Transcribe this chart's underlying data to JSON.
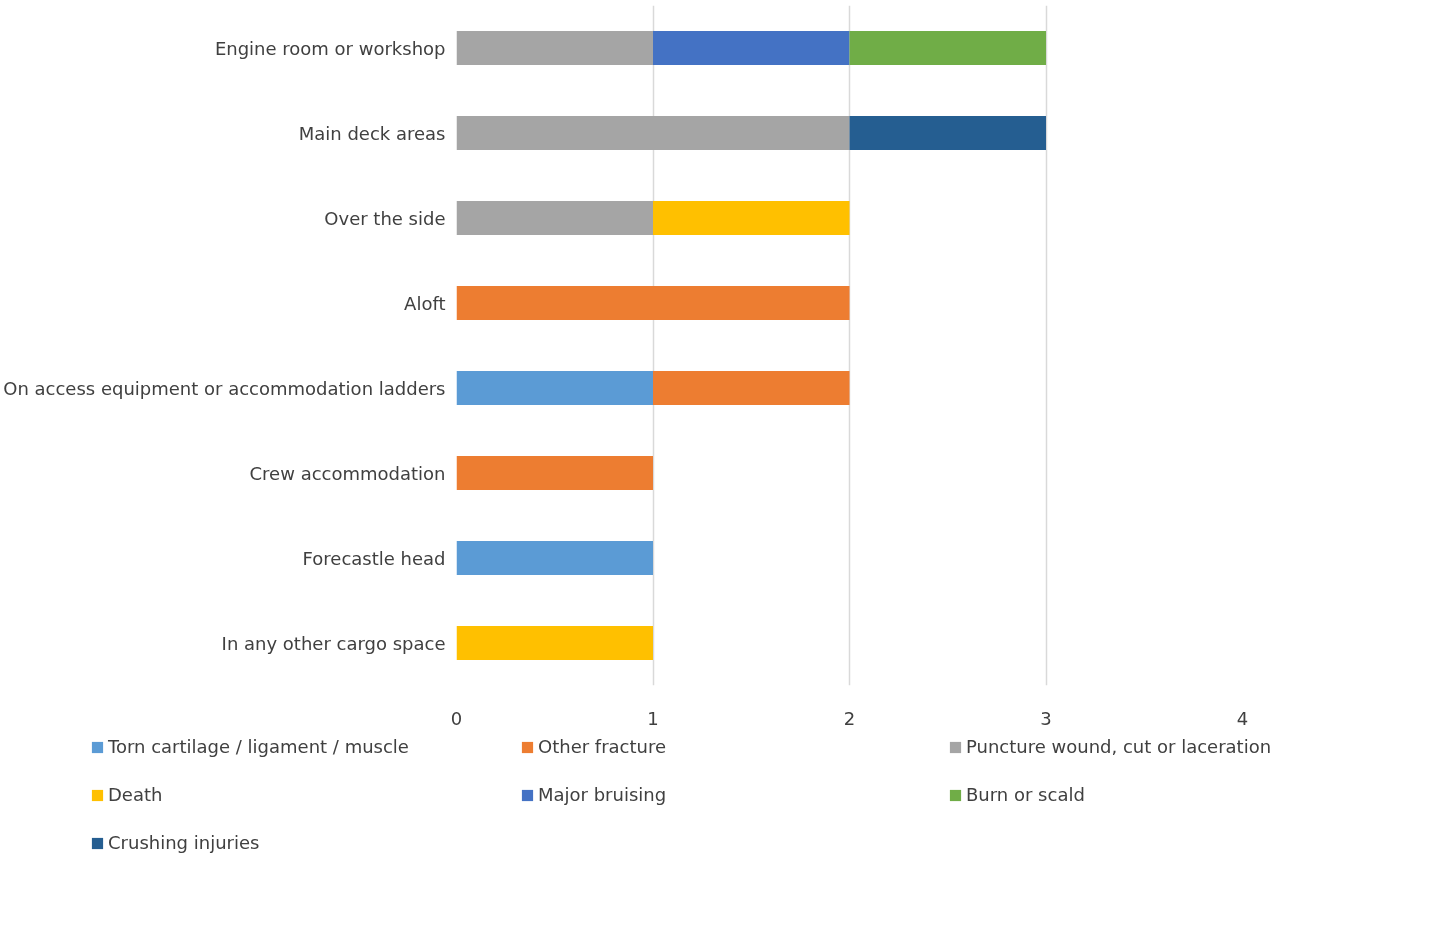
{
  "chart_data": {
    "type": "bar",
    "orientation": "horizontal",
    "stacked": true,
    "categories": [
      "Engine room or workshop",
      "Main deck areas",
      "Over the side",
      "Aloft",
      "On access equipment or accommodation ladders",
      "Crew accommodation",
      "Forecastle head",
      "In any other cargo space"
    ],
    "series": [
      {
        "name": "Torn cartilage / ligament / muscle",
        "color": "#5b9bd5",
        "values": [
          null,
          null,
          null,
          null,
          1,
          null,
          1,
          null
        ]
      },
      {
        "name": "Other fracture",
        "color": "#ed7d31",
        "values": [
          null,
          null,
          null,
          2,
          1,
          1,
          null,
          null
        ]
      },
      {
        "name": "Puncture wound, cut or laceration",
        "color": "#a5a5a5",
        "values": [
          1,
          2,
          1,
          null,
          null,
          null,
          null,
          null
        ]
      },
      {
        "name": "Death",
        "color": "#ffc000",
        "values": [
          null,
          null,
          1,
          null,
          null,
          null,
          null,
          1
        ]
      },
      {
        "name": "Major bruising",
        "color": "#4472c4",
        "values": [
          1,
          null,
          null,
          null,
          null,
          null,
          null,
          null
        ]
      },
      {
        "name": "Burn or scald",
        "color": "#70ad47",
        "values": [
          1,
          null,
          null,
          null,
          null,
          null,
          null,
          null
        ]
      },
      {
        "name": "Crushing injuries",
        "color": "#255e91",
        "values": [
          null,
          1,
          null,
          null,
          null,
          null,
          null,
          null
        ]
      }
    ],
    "xlim": [
      0,
      4
    ],
    "xticks": [
      0,
      1,
      2,
      3,
      4
    ],
    "grid": "x",
    "legend": "bottom"
  }
}
